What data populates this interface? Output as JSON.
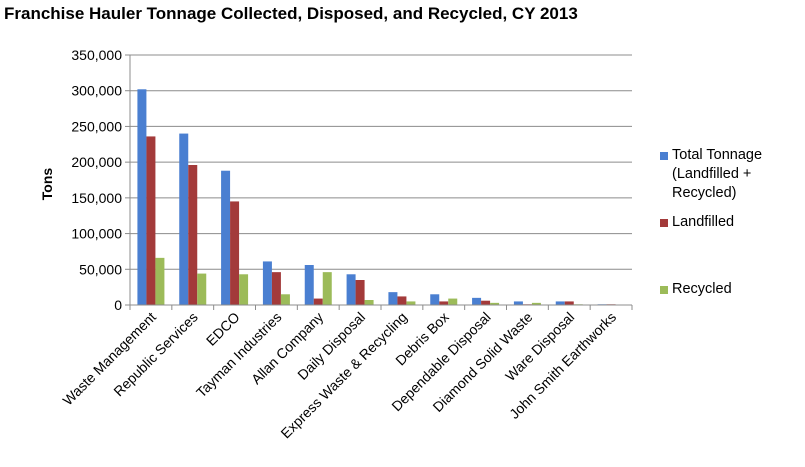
{
  "chart_data": {
    "type": "bar",
    "title": "Franchise Hauler Tonnage Collected, Disposed, and Recycled, CY 2013",
    "xlabel": "",
    "ylabel": "Tons",
    "ylim": [
      0,
      350000
    ],
    "yticks": [
      "0",
      "50,000",
      "100,000",
      "150,000",
      "200,000",
      "250,000",
      "300,000",
      "350,000"
    ],
    "grid": "horizontal",
    "legend_position": "right",
    "categories": [
      "Waste Management",
      "Republic Services",
      "EDCO",
      "Tayman Industries",
      "Allan Company",
      "Daily Disposal",
      "Express Waste & Recycling",
      "Debris Box",
      "Dependable Disposal",
      "Diamond Solid Waste",
      "Ware Disposal",
      "John Smith Earthworks"
    ],
    "series": [
      {
        "name": "Total Tonnage (Landfilled + Recycled)",
        "color": "#4a7fd1",
        "values": [
          302000,
          240000,
          188000,
          61000,
          56000,
          43000,
          18000,
          15000,
          10000,
          5000,
          5000,
          1000
        ]
      },
      {
        "name": "Landfilled",
        "color": "#a33a3a",
        "values": [
          236000,
          196000,
          145000,
          46000,
          9000,
          35000,
          12000,
          5000,
          6000,
          1000,
          5000,
          1000
        ]
      },
      {
        "name": "Recycled",
        "color": "#9cbb59",
        "values": [
          66000,
          44000,
          43000,
          15000,
          46000,
          7000,
          5000,
          9000,
          3000,
          3000,
          1000,
          500
        ]
      }
    ]
  }
}
